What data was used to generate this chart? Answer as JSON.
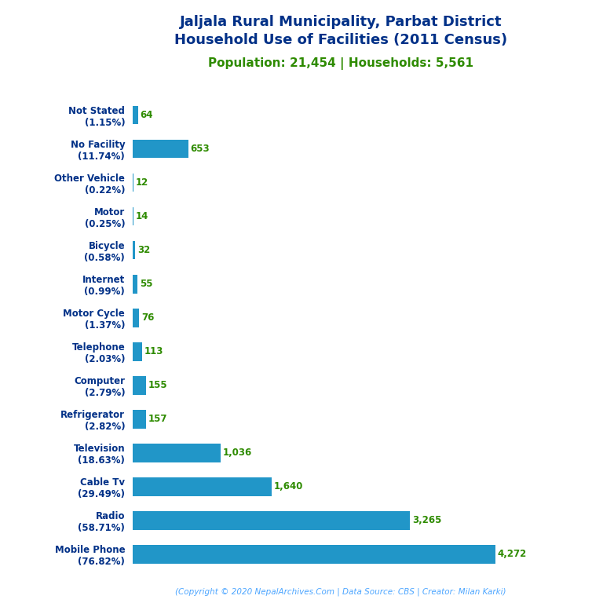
{
  "title_line1": "Jaljala Rural Municipality, Parbat District",
  "title_line2": "Household Use of Facilities (2011 Census)",
  "subtitle": "Population: 21,454 | Households: 5,561",
  "footer": "(Copyright © 2020 NepalArchives.Com | Data Source: CBS | Creator: Milan Karki)",
  "title_color": "#003087",
  "subtitle_color": "#2e8b00",
  "footer_color": "#4da6ff",
  "bar_color": "#2196c8",
  "value_color": "#2e8b00",
  "label_color": "#003087",
  "categories": [
    "Not Stated\n(1.15%)",
    "No Facility\n(11.74%)",
    "Other Vehicle\n(0.22%)",
    "Motor\n(0.25%)",
    "Bicycle\n(0.58%)",
    "Internet\n(0.99%)",
    "Motor Cycle\n(1.37%)",
    "Telephone\n(2.03%)",
    "Computer\n(2.79%)",
    "Refrigerator\n(2.82%)",
    "Television\n(18.63%)",
    "Cable Tv\n(29.49%)",
    "Radio\n(58.71%)",
    "Mobile Phone\n(76.82%)"
  ],
  "values": [
    64,
    653,
    12,
    14,
    32,
    55,
    76,
    113,
    155,
    157,
    1036,
    1640,
    3265,
    4272
  ],
  "value_labels": [
    "64",
    "653",
    "12",
    "14",
    "32",
    "55",
    "76",
    "113",
    "155",
    "157",
    "1,036",
    "1,640",
    "3,265",
    "4,272"
  ],
  "xlim": [
    0,
    4900
  ],
  "figsize": [
    7.68,
    7.68
  ],
  "dpi": 100
}
